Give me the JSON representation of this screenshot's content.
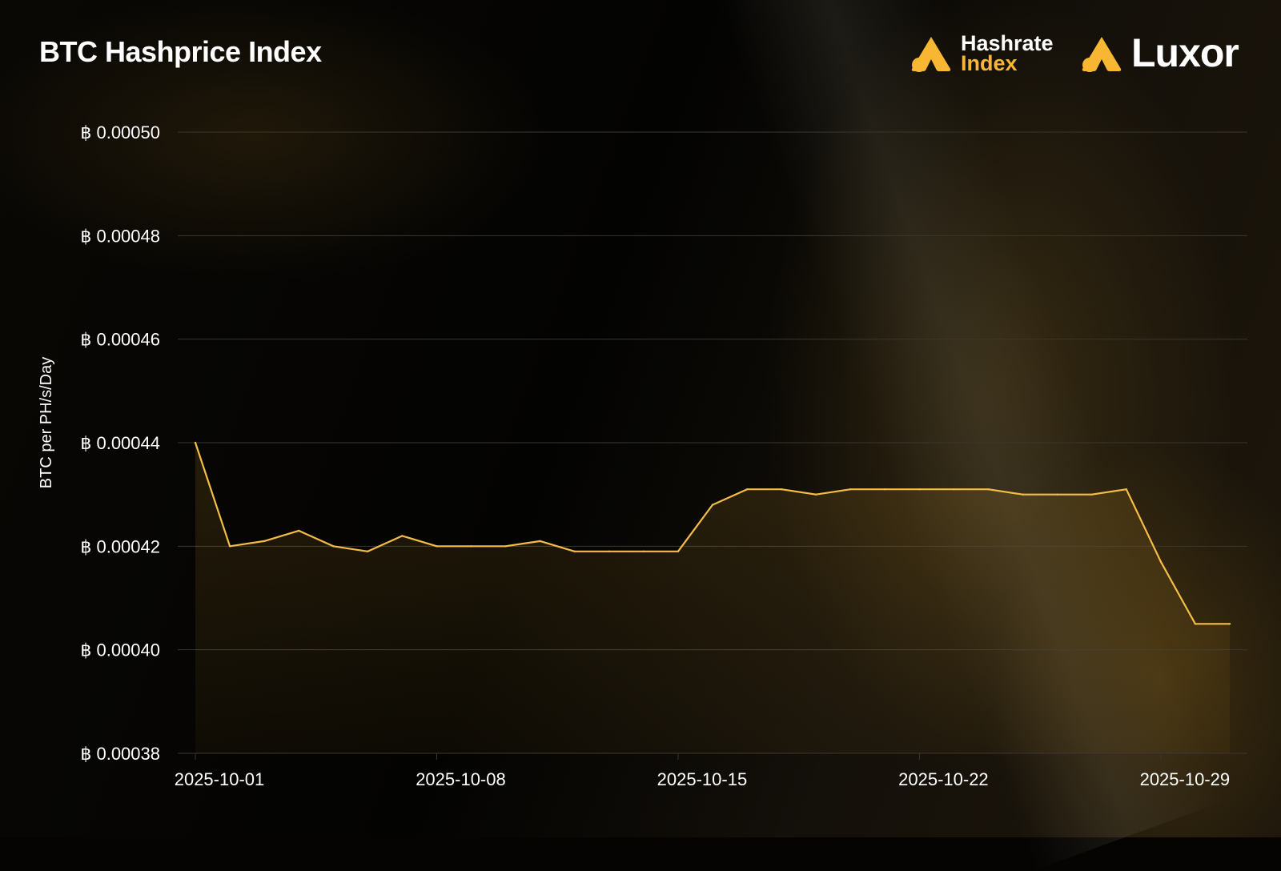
{
  "header": {
    "title": "BTC Hashprice Index",
    "logo_hashrate_line1": "Hashrate",
    "logo_hashrate_line2": "Index",
    "logo_luxor": "Luxor"
  },
  "colors": {
    "accent": "#f7b733",
    "line": "#f5bd45",
    "grid": "#3a3630",
    "text": "#ffffff"
  },
  "chart_data": {
    "type": "area",
    "title": "BTC Hashprice Index",
    "ylabel": "BTC per PH/s/Day",
    "xlabel": "",
    "ylim": [
      0.00038,
      0.0005
    ],
    "y_ticks": [
      0.0005,
      0.00048,
      0.00046,
      0.00044,
      0.00042,
      0.0004,
      0.00038
    ],
    "y_tick_labels": [
      "฿ 0.00050",
      "฿ 0.00048",
      "฿ 0.00046",
      "฿ 0.00044",
      "฿ 0.00042",
      "฿ 0.00040",
      "฿ 0.00038"
    ],
    "x_tick_labels": [
      "2025-10-01",
      "2025-10-08",
      "2025-10-15",
      "2025-10-22",
      "2025-10-29"
    ],
    "x": [
      "2025-10-01",
      "2025-10-02",
      "2025-10-03",
      "2025-10-04",
      "2025-10-05",
      "2025-10-06",
      "2025-10-07",
      "2025-10-08",
      "2025-10-09",
      "2025-10-10",
      "2025-10-11",
      "2025-10-12",
      "2025-10-13",
      "2025-10-14",
      "2025-10-15",
      "2025-10-16",
      "2025-10-17",
      "2025-10-18",
      "2025-10-19",
      "2025-10-20",
      "2025-10-21",
      "2025-10-22",
      "2025-10-23",
      "2025-10-24",
      "2025-10-25",
      "2025-10-26",
      "2025-10-27",
      "2025-10-28",
      "2025-10-29",
      "2025-10-30",
      "2025-10-31"
    ],
    "values": [
      0.00044,
      0.00042,
      0.000421,
      0.000423,
      0.00042,
      0.000419,
      0.000422,
      0.00042,
      0.00042,
      0.00042,
      0.000421,
      0.000419,
      0.000419,
      0.000419,
      0.000419,
      0.000428,
      0.000431,
      0.000431,
      0.00043,
      0.000431,
      0.000431,
      0.000431,
      0.000431,
      0.000431,
      0.00043,
      0.00043,
      0.00043,
      0.000431,
      0.000417,
      0.000405,
      0.000405
    ],
    "grid": true,
    "legend": "none"
  }
}
